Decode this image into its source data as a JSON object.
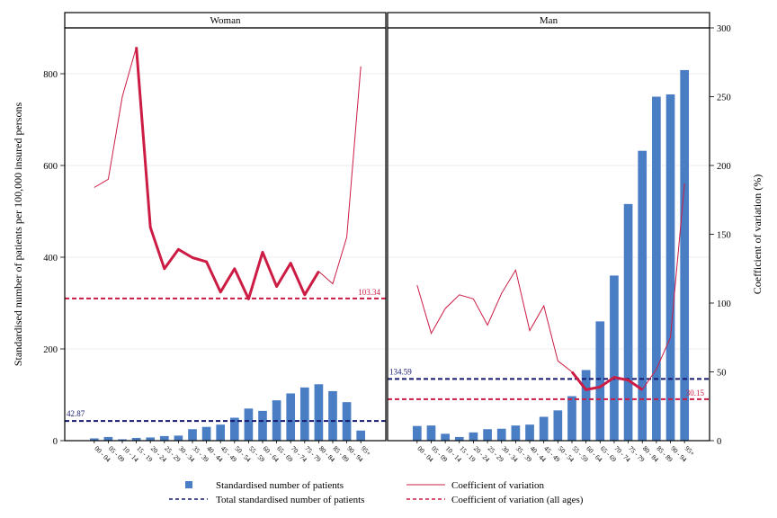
{
  "chart_data": {
    "type": "bar",
    "y_left_label": "Standardised number of patients per 100,000 insured persons",
    "y_right_label": "Coefficient of variation (%)",
    "y_left_lim": [
      0,
      900
    ],
    "y_right_lim": [
      0,
      300
    ],
    "y_left_ticks": [
      "0",
      "200",
      "400",
      "600",
      "800"
    ],
    "y_right_ticks": [
      "0",
      "50",
      "100",
      "150",
      "200",
      "250",
      "300"
    ],
    "categories": [
      "00 - 04",
      "05 - 09",
      "10 - 14",
      "15 - 19",
      "20 - 24",
      "25 - 29",
      "30 - 34",
      "35 - 39",
      "40 - 44",
      "45 - 49",
      "50 - 54",
      "55 - 59",
      "60 - 64",
      "65 - 69",
      "70 - 74",
      "75 - 79",
      "80 - 84",
      "85 - 89",
      "90 - 94",
      "95+"
    ],
    "panels": [
      {
        "title": "Woman",
        "bars": [
          5,
          8,
          3,
          6,
          7,
          10,
          11,
          25,
          30,
          35,
          50,
          70,
          65,
          88,
          103,
          116,
          123,
          108,
          84,
          22
        ],
        "cv_thick": [
          null,
          null,
          null,
          286,
          155,
          125,
          139,
          133,
          130,
          108,
          125,
          103,
          137,
          112,
          129,
          106,
          123,
          null,
          null,
          null
        ],
        "cv_thin": [
          184,
          190,
          250,
          286,
          155,
          125,
          139,
          133,
          130,
          108,
          125,
          103,
          137,
          112,
          129,
          106,
          123,
          114,
          148,
          272
        ],
        "total": 42.87,
        "total_label": "42.87",
        "cv_all": 103.34,
        "cv_all_label": "103.34"
      },
      {
        "title": "Man",
        "bars": [
          32,
          33,
          15,
          8,
          18,
          25,
          26,
          33,
          35,
          52,
          66,
          97,
          154,
          260,
          360,
          516,
          632,
          750,
          755,
          808
        ],
        "cv_thick": [
          null,
          null,
          null,
          null,
          null,
          null,
          null,
          null,
          null,
          null,
          null,
          50,
          37,
          39,
          46,
          44,
          37,
          null,
          null,
          null
        ],
        "cv_thin": [
          113,
          78,
          96,
          106,
          103,
          84,
          107,
          124,
          80,
          98,
          58,
          50,
          37,
          39,
          46,
          44,
          37,
          52,
          75,
          187
        ],
        "total": 134.59,
        "total_label": "134.59",
        "cv_all": 30.15,
        "cv_all_label": "30.15"
      }
    ],
    "legend": {
      "bars": "Standardised number of patients",
      "cv": "Coefficient of variation",
      "total": "Total standardised number of patients",
      "cv_all": "Coefficient of variation (all ages)"
    },
    "colors": {
      "bar": "#4a7ec4",
      "cv": "#cc1c44",
      "total": "#14196e",
      "cv_all": "#cc1c44",
      "panel_header": "#ffffff",
      "grid": "#ececec"
    },
    "legend_position": "bottom"
  }
}
